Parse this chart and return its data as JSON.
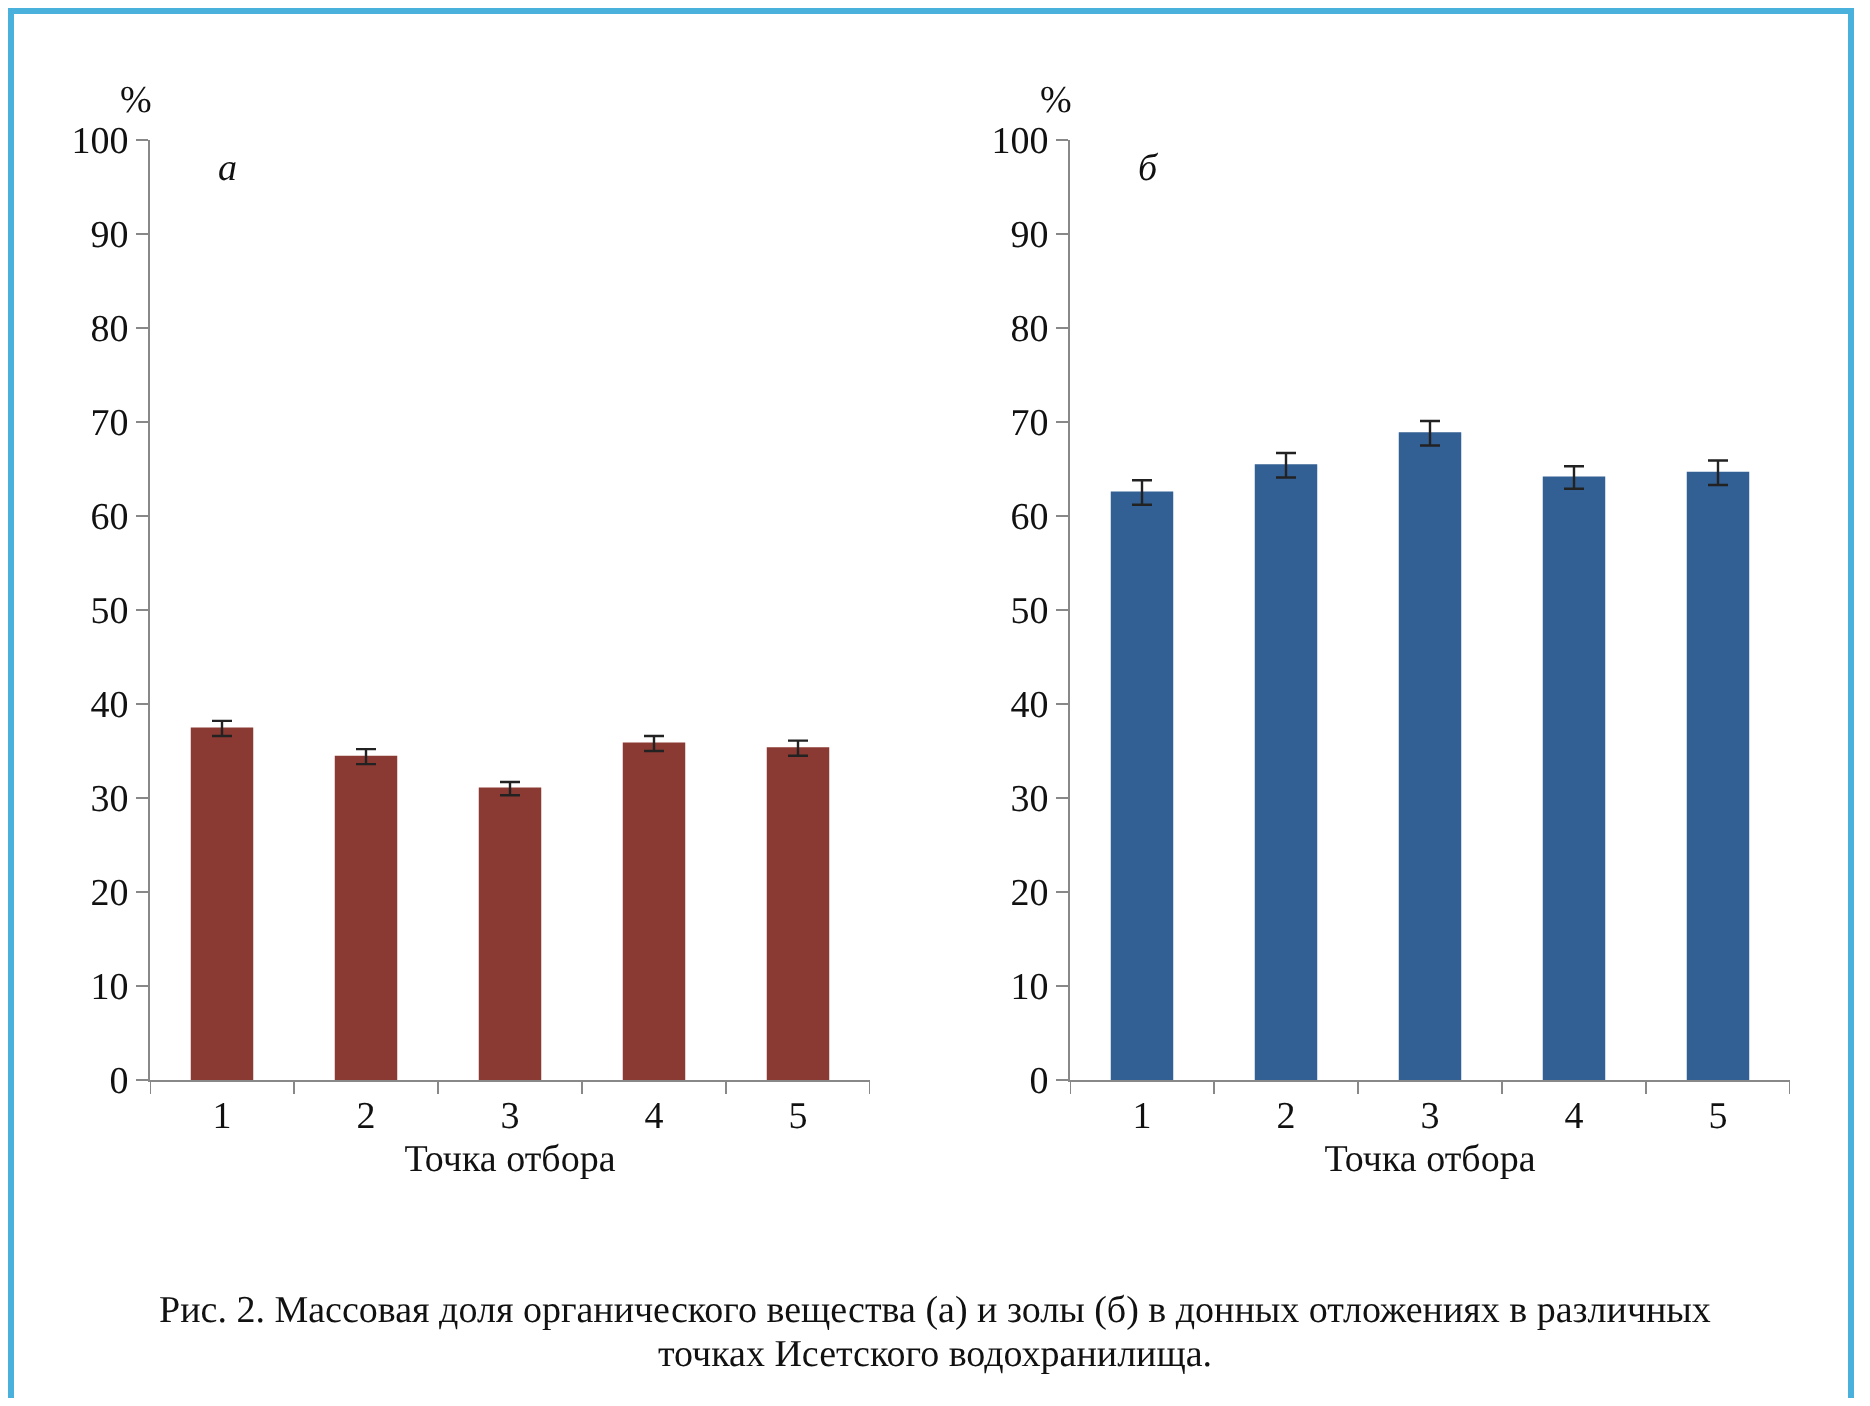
{
  "chart_data": [
    {
      "type": "bar",
      "ylabel": "%",
      "xlabel": "Точка отбора",
      "annotations": [
        "а"
      ],
      "categories": [
        "1",
        "2",
        "3",
        "4",
        "5"
      ],
      "values": [
        37.4,
        34.4,
        31.0,
        35.8,
        35.3
      ],
      "errors": [
        0.8,
        0.8,
        0.7,
        0.8,
        0.8
      ],
      "color": "#8b3a33",
      "ylim": [
        0,
        100
      ],
      "yticks": [
        0,
        10,
        20,
        30,
        40,
        50,
        60,
        70,
        80,
        90,
        100
      ],
      "grid": false,
      "legend": false
    },
    {
      "type": "bar",
      "ylabel": "%",
      "xlabel": "Точка отбора",
      "annotations": [
        "б",
        "Рис. 2. Массовая доля органического вещества (а) и золы (б) в донных отложениях в различных точках Исетского водохранилища."
      ],
      "categories": [
        "1",
        "2",
        "3",
        "4",
        "5"
      ],
      "values": [
        62.5,
        65.4,
        68.8,
        64.1,
        64.6
      ],
      "errors": [
        1.3,
        1.3,
        1.3,
        1.2,
        1.3
      ],
      "color": "#336094",
      "ylim": [
        0,
        100
      ],
      "yticks": [
        0,
        10,
        20,
        30,
        40,
        50,
        60,
        70,
        80,
        90,
        100
      ],
      "grid": false,
      "legend": false
    }
  ]
}
